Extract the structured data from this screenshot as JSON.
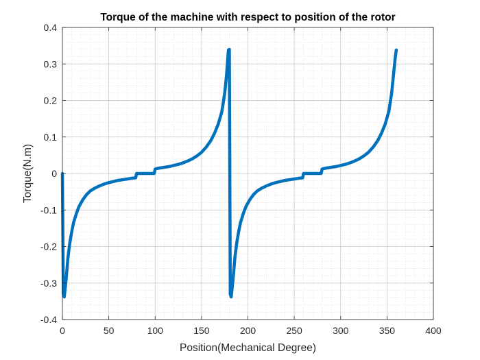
{
  "chart_data": {
    "type": "line",
    "title": "Torque of the machine with respect to position of the rotor",
    "xlabel": "Position(Mechanical Degree)",
    "ylabel": "Torque(N.m)",
    "xlim": [
      0,
      400
    ],
    "ylim": [
      -0.4,
      0.4
    ],
    "xticks": [
      0,
      50,
      100,
      150,
      200,
      250,
      300,
      350,
      400
    ],
    "yticks": [
      -0.4,
      -0.3,
      -0.2,
      -0.1,
      0,
      0.1,
      0.2,
      0.3,
      0.4
    ],
    "xtick_labels": [
      "0",
      "50",
      "100",
      "150",
      "200",
      "250",
      "300",
      "350",
      "400"
    ],
    "ytick_labels": [
      "-0.4",
      "-0.3",
      "-0.2",
      "-0.1",
      "0",
      "0.1",
      "0.2",
      "0.3",
      "0.4"
    ],
    "grid": true,
    "minor_grid": true,
    "line_color": "#0072BD",
    "series": [
      {
        "x": [
          0,
          1,
          2,
          4,
          6,
          8,
          10,
          12,
          15,
          18,
          22,
          26,
          30,
          35,
          40,
          45,
          50,
          55,
          60,
          65,
          70,
          75,
          79,
          80,
          81,
          82,
          99,
          100,
          101,
          105,
          110,
          115,
          120,
          125,
          130,
          135,
          140,
          145,
          150,
          155,
          160,
          164,
          168,
          172,
          175,
          177,
          179,
          180,
          181,
          182,
          184,
          186,
          188,
          190,
          192,
          195,
          198,
          202,
          206,
          210,
          215,
          220,
          225,
          230,
          235,
          240,
          245,
          250,
          255,
          259,
          260,
          261,
          262,
          279,
          280,
          281,
          285,
          290,
          295,
          300,
          305,
          310,
          315,
          320,
          325,
          330,
          335,
          340,
          344,
          348,
          352,
          355,
          357,
          359,
          360
        ],
        "y": [
          0,
          -0.33,
          -0.338,
          -0.29,
          -0.23,
          -0.19,
          -0.16,
          -0.135,
          -0.11,
          -0.09,
          -0.072,
          -0.058,
          -0.048,
          -0.04,
          -0.034,
          -0.029,
          -0.025,
          -0.022,
          -0.019,
          -0.017,
          -0.015,
          -0.013,
          -0.012,
          0,
          0,
          0,
          0,
          0.012,
          0.013,
          0.015,
          0.017,
          0.019,
          0.022,
          0.025,
          0.029,
          0.034,
          0.04,
          0.048,
          0.058,
          0.072,
          0.09,
          0.11,
          0.135,
          0.17,
          0.22,
          0.27,
          0.338,
          0.34,
          -0.33,
          -0.338,
          -0.29,
          -0.23,
          -0.19,
          -0.16,
          -0.135,
          -0.11,
          -0.09,
          -0.072,
          -0.058,
          -0.048,
          -0.04,
          -0.034,
          -0.029,
          -0.025,
          -0.022,
          -0.019,
          -0.017,
          -0.015,
          -0.013,
          -0.012,
          0,
          0,
          0,
          0,
          0.012,
          0.013,
          0.015,
          0.017,
          0.019,
          0.022,
          0.025,
          0.029,
          0.034,
          0.04,
          0.048,
          0.058,
          0.072,
          0.09,
          0.11,
          0.135,
          0.17,
          0.22,
          0.27,
          0.32,
          0.338
        ]
      }
    ]
  }
}
